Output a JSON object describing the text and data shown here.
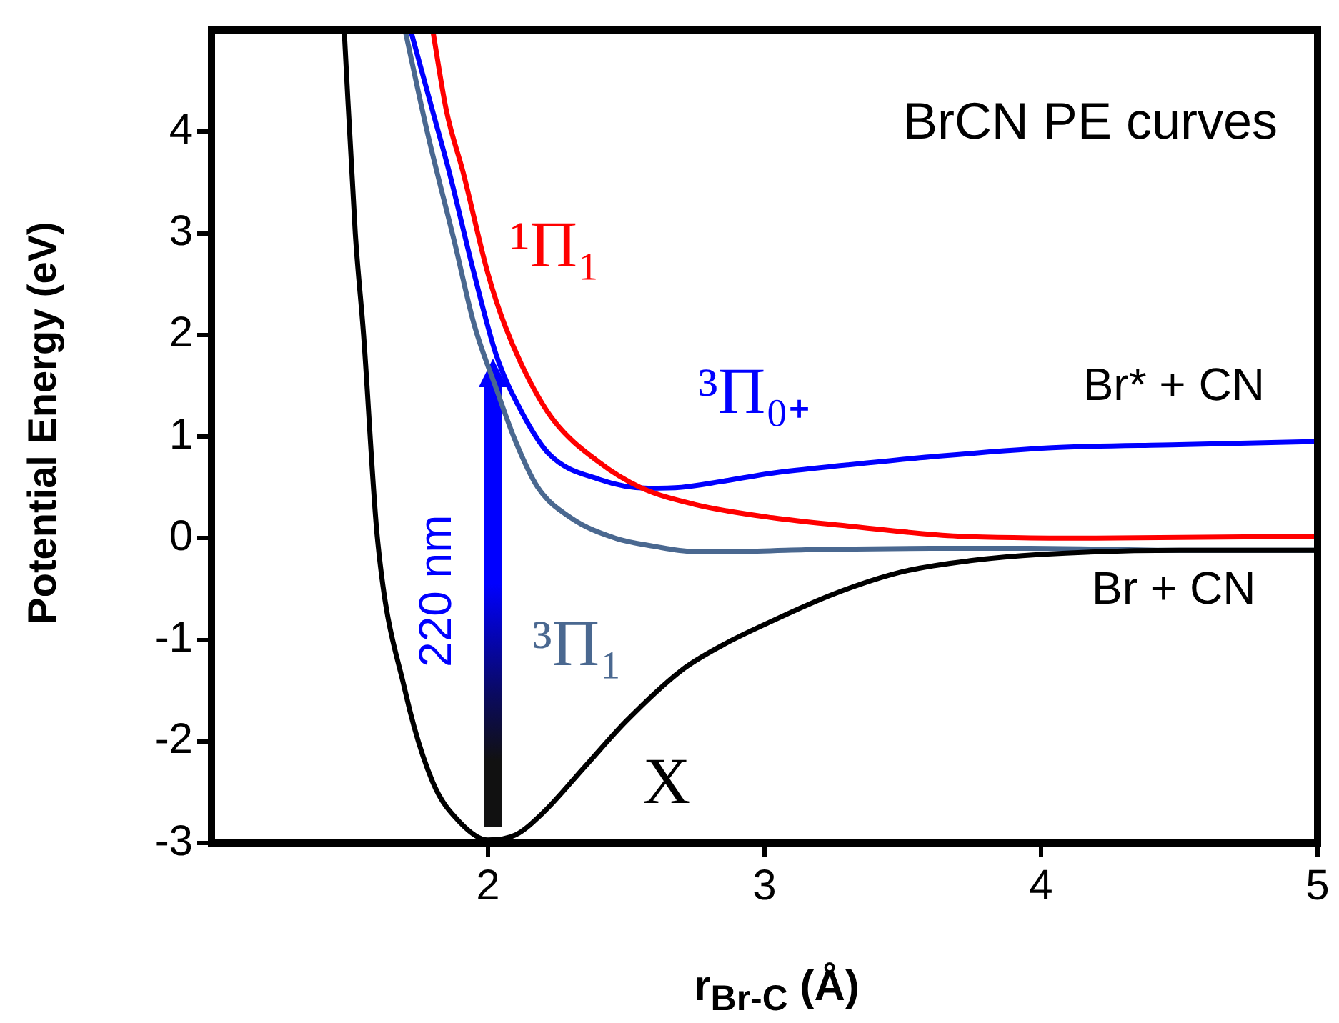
{
  "chart_data": {
    "type": "line",
    "title": "BrCN PE curves",
    "xlabel": "r$_{Br-C}$ (Å)",
    "ylabel": "Potential Energy (eV)",
    "xlim": [
      1,
      5
    ],
    "xticks": [
      2,
      3,
      4,
      5
    ],
    "ylim": [
      -3,
      5
    ],
    "yticks": [
      -3,
      -2,
      -1,
      0,
      1,
      2,
      3,
      4
    ],
    "grid": false,
    "legend": false,
    "marker": "none",
    "line_style": "solid",
    "series": [
      {
        "name": "X",
        "color": "#000000",
        "x": [
          1.48,
          1.52,
          1.55,
          1.6,
          1.7,
          1.8,
          1.9,
          2.0,
          2.1,
          2.2,
          2.35,
          2.5,
          2.7,
          2.85,
          3.0,
          3.25,
          3.5,
          3.75,
          4.0,
          4.5,
          5.0
        ],
        "values": [
          5,
          3,
          2,
          0,
          -1.5,
          -2.4,
          -2.8,
          -2.97,
          -2.92,
          -2.7,
          -2.25,
          -1.8,
          -1.3,
          -1.05,
          -0.85,
          -0.55,
          -0.33,
          -0.22,
          -0.16,
          -0.12,
          -0.12
        ]
      },
      {
        "name": "¹Π₁",
        "color": "#ff0000",
        "x": [
          1.8,
          1.85,
          1.91,
          2.0,
          2.06,
          2.15,
          2.24,
          2.4,
          2.55,
          2.75,
          3.03,
          3.3,
          3.7,
          4.2,
          5.0
        ],
        "values": [
          5,
          4.2,
          3.6,
          2.6,
          2.1,
          1.55,
          1.15,
          0.75,
          0.5,
          0.33,
          0.2,
          0.12,
          0.02,
          0.0,
          0.02
        ]
      },
      {
        "name": "³Π₀₊",
        "color": "#0000ff",
        "x": [
          1.72,
          1.8,
          1.86,
          1.95,
          2.03,
          2.12,
          2.22,
          2.4,
          2.58,
          2.7,
          2.85,
          3.03,
          3.3,
          3.6,
          4.04,
          4.5,
          5.0
        ],
        "values": [
          5,
          4.2,
          3.6,
          2.6,
          1.8,
          1.25,
          0.83,
          0.58,
          0.49,
          0.5,
          0.56,
          0.64,
          0.72,
          0.8,
          0.89,
          0.92,
          0.95
        ]
      },
      {
        "name": "³Π₁",
        "color": "#4a6890",
        "x": [
          1.7,
          1.78,
          1.88,
          1.95,
          2.03,
          2.1,
          2.18,
          2.3,
          2.46,
          2.6,
          2.74,
          2.9,
          3.2,
          3.6,
          3.96,
          4.5,
          5.0
        ],
        "values": [
          5,
          4.0,
          2.9,
          2.1,
          1.47,
          0.95,
          0.5,
          0.2,
          0.0,
          -0.08,
          -0.13,
          -0.13,
          -0.11,
          -0.1,
          -0.1,
          -0.12,
          -0.12
        ]
      }
    ],
    "annotations": [
      "Br* + CN",
      "Br + CN",
      "220 nm"
    ]
  }
}
